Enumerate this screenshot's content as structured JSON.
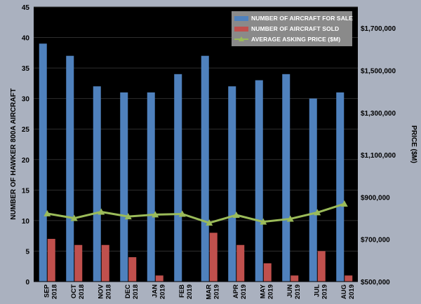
{
  "chart_data": {
    "type": "bar",
    "categories": [
      [
        "SEP",
        "2018"
      ],
      [
        "OCT",
        "2018"
      ],
      [
        "NOV",
        "2018"
      ],
      [
        "DEC",
        "2018"
      ],
      [
        "JAN",
        "2019"
      ],
      [
        "FEB",
        "2019"
      ],
      [
        "MAR",
        "2019"
      ],
      [
        "APR",
        "2019"
      ],
      [
        "MAY",
        "2019"
      ],
      [
        "JUN",
        "2019"
      ],
      [
        "JUL",
        "2019"
      ],
      [
        "AUG",
        "2019"
      ]
    ],
    "series": [
      {
        "name": "NUMBER OF AIRCRAFT FOR SALE",
        "type": "bar",
        "axis": "left",
        "color": "#4f81bd",
        "values": [
          39,
          37,
          32,
          31,
          31,
          34,
          37,
          32,
          33,
          34,
          30,
          31
        ]
      },
      {
        "name": "NUMBER OF AIRCRAFT SOLD",
        "type": "bar",
        "axis": "left",
        "color": "#c0504d",
        "values": [
          7,
          6,
          6,
          4,
          1,
          0,
          8,
          6,
          3,
          1,
          5,
          1
        ]
      },
      {
        "name": "AVERAGE ASKING PRICE ($M)",
        "type": "line",
        "axis": "right",
        "color": "#9bbb59",
        "values": [
          822000,
          800000,
          830000,
          808000,
          817000,
          820000,
          778000,
          815000,
          783000,
          797000,
          827000,
          868000
        ]
      }
    ],
    "ylabel": "NUMBER OF HAWKER 800A AIRCRAFT",
    "y2label": "PRICE ($M)",
    "ylim": [
      0,
      45
    ],
    "yticks": [
      "0",
      "5",
      "10",
      "15",
      "20",
      "25",
      "30",
      "35",
      "40",
      "45"
    ],
    "y2lim": [
      500000,
      1800000
    ],
    "y2ticks": [
      {
        "value": 500000,
        "label": "$500,000"
      },
      {
        "value": 700000,
        "label": "$700,000"
      },
      {
        "value": 900000,
        "label": "$900,000"
      },
      {
        "value": 1100000,
        "label": "$1,100,000"
      },
      {
        "value": 1300000,
        "label": "$1,300,000"
      },
      {
        "value": 1500000,
        "label": "$1,500,000"
      },
      {
        "value": 1700000,
        "label": "$1,700,000"
      }
    ],
    "grid": true,
    "legend": "top-right",
    "colors": {
      "background": "#000000",
      "frame": "#aab1bf",
      "grid": "#2e2e2e",
      "legend_bg": "#8a8a8a"
    }
  }
}
